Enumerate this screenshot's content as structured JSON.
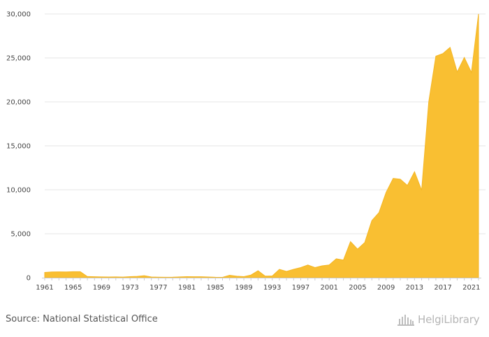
{
  "chart_data": {
    "type": "area",
    "x": [
      1961,
      1962,
      1963,
      1964,
      1965,
      1966,
      1967,
      1968,
      1969,
      1970,
      1971,
      1972,
      1973,
      1974,
      1975,
      1976,
      1977,
      1978,
      1979,
      1980,
      1981,
      1982,
      1983,
      1984,
      1985,
      1986,
      1987,
      1988,
      1989,
      1990,
      1991,
      1992,
      1993,
      1994,
      1995,
      1996,
      1997,
      1998,
      1999,
      2000,
      2001,
      2002,
      2003,
      2004,
      2005,
      2006,
      2007,
      2008,
      2009,
      2010,
      2011,
      2012,
      2013,
      2014,
      2015,
      2016,
      2017,
      2018,
      2019,
      2020,
      2021,
      2022
    ],
    "series": [
      {
        "values": [
          600,
          650,
          660,
          650,
          680,
          680,
          130,
          110,
          90,
          80,
          90,
          70,
          120,
          150,
          230,
          80,
          60,
          50,
          60,
          90,
          120,
          110,
          110,
          80,
          50,
          40,
          280,
          170,
          120,
          300,
          800,
          180,
          200,
          950,
          720,
          950,
          1150,
          1450,
          1150,
          1350,
          1450,
          2150,
          2000,
          4100,
          3250,
          4000,
          6500,
          7400,
          9700,
          11300,
          11200,
          10500,
          12050,
          9950,
          20000,
          25200,
          25500,
          26200,
          23400,
          25050,
          23350,
          30000
        ]
      }
    ],
    "xtick_labels": [
      "1961",
      "1965",
      "1969",
      "1973",
      "1977",
      "1981",
      "1985",
      "1989",
      "1993",
      "1997",
      "2001",
      "2005",
      "2009",
      "2013",
      "2017",
      "2021"
    ],
    "ytick_labels": [
      "0",
      "5,000",
      "10,000",
      "15,000",
      "20,000",
      "25,000",
      "30,000"
    ],
    "yticks": [
      0,
      5000,
      10000,
      15000,
      20000,
      25000,
      30000
    ],
    "ylim": [
      0,
      30000
    ],
    "grid": true,
    "colors": {
      "area": "#f9bf32",
      "grid": "#e6e6e6",
      "axis": "#cccccc"
    }
  },
  "footer": {
    "source": "Source: National Statistical Office",
    "brand": "HelgiLibrary"
  }
}
